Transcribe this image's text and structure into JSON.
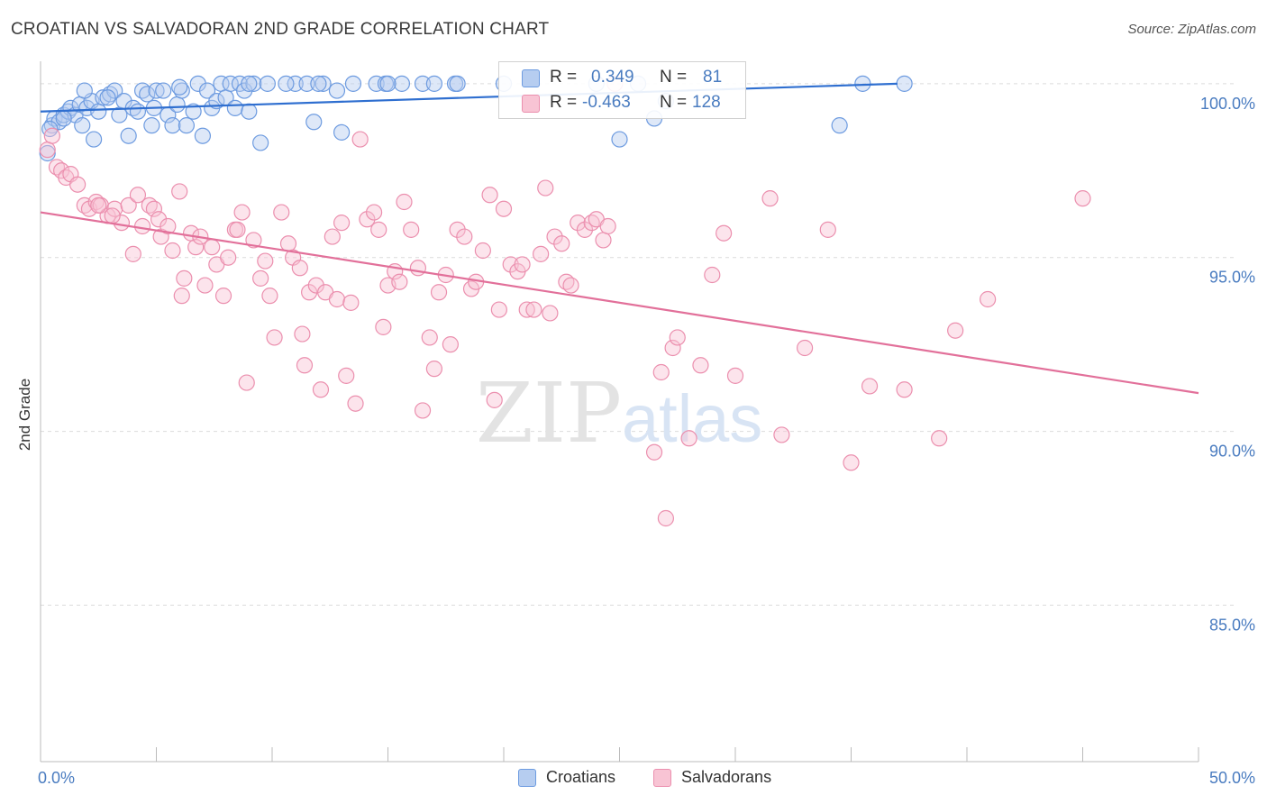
{
  "header": {
    "title": "CROATIAN VS SALVADORAN 2ND GRADE CORRELATION CHART",
    "source": "Source: ZipAtlas.com"
  },
  "legend": {
    "rows": [
      {
        "r_label": "R =",
        "r_value": "0.349",
        "n_label": "N =",
        "n_value": "81",
        "color": "#6d9be0"
      },
      {
        "r_label": "R =",
        "r_value": "-0.463",
        "n_label": "N =",
        "n_value": "128",
        "color": "#eb8fae"
      }
    ],
    "bottom": [
      {
        "label": "Croatians",
        "color": "#6d9be0"
      },
      {
        "label": "Salvadorans",
        "color": "#eb8fae"
      }
    ]
  },
  "watermark": {
    "part1": "ZIP",
    "part2": "atlas"
  },
  "chart_data": {
    "type": "scatter",
    "ylabel": "2nd Grade",
    "xlim": [
      0,
      50
    ],
    "ylim": [
      80.5,
      100.8
    ],
    "x_tick_labels": [
      {
        "value": 0,
        "label": "0.0%"
      },
      {
        "value": 50,
        "label": "50.0%"
      }
    ],
    "y_tick_labels": [
      {
        "value": 100,
        "label": "100.0%"
      },
      {
        "value": 95,
        "label": "95.0%"
      },
      {
        "value": 90,
        "label": "90.0%"
      },
      {
        "value": 85,
        "label": "85.0%"
      }
    ],
    "grid": "horizontal dashed",
    "series": [
      {
        "name": "Croatians",
        "color": "#6d9be0",
        "trend": {
          "x": [
            0,
            37
          ],
          "y": [
            99.2,
            100.0
          ]
        },
        "points": [
          [
            0.3,
            98.0
          ],
          [
            0.5,
            98.8
          ],
          [
            0.6,
            99.0
          ],
          [
            0.8,
            98.9
          ],
          [
            1.0,
            99.1
          ],
          [
            1.2,
            99.2
          ],
          [
            1.3,
            99.3
          ],
          [
            1.5,
            99.1
          ],
          [
            1.7,
            99.4
          ],
          [
            1.8,
            98.8
          ],
          [
            2.0,
            99.3
          ],
          [
            2.2,
            99.5
          ],
          [
            2.3,
            98.4
          ],
          [
            2.5,
            99.2
          ],
          [
            2.7,
            99.6
          ],
          [
            3.0,
            99.7
          ],
          [
            3.2,
            99.8
          ],
          [
            3.4,
            99.1
          ],
          [
            3.6,
            99.5
          ],
          [
            3.8,
            98.5
          ],
          [
            4.0,
            99.3
          ],
          [
            4.2,
            99.2
          ],
          [
            4.4,
            99.8
          ],
          [
            4.6,
            99.7
          ],
          [
            4.8,
            98.8
          ],
          [
            5.0,
            99.8
          ],
          [
            5.3,
            99.8
          ],
          [
            5.5,
            99.1
          ],
          [
            5.7,
            98.8
          ],
          [
            5.9,
            99.4
          ],
          [
            6.1,
            99.8
          ],
          [
            6.3,
            98.8
          ],
          [
            6.6,
            99.2
          ],
          [
            6.8,
            100.0
          ],
          [
            7.0,
            98.5
          ],
          [
            7.2,
            99.8
          ],
          [
            7.4,
            99.3
          ],
          [
            7.6,
            99.5
          ],
          [
            7.8,
            100.0
          ],
          [
            8.0,
            99.6
          ],
          [
            8.2,
            100.0
          ],
          [
            8.4,
            99.3
          ],
          [
            8.6,
            100.0
          ],
          [
            8.8,
            99.8
          ],
          [
            9.0,
            99.2
          ],
          [
            9.2,
            100.0
          ],
          [
            9.5,
            98.3
          ],
          [
            9.8,
            100.0
          ],
          [
            11.0,
            100.0
          ],
          [
            11.5,
            100.0
          ],
          [
            11.8,
            98.9
          ],
          [
            12.2,
            100.0
          ],
          [
            12.8,
            99.8
          ],
          [
            13.0,
            98.6
          ],
          [
            13.5,
            100.0
          ],
          [
            14.5,
            100.0
          ],
          [
            14.9,
            100.0
          ],
          [
            15.6,
            100.0
          ],
          [
            16.5,
            100.0
          ],
          [
            17.0,
            100.0
          ],
          [
            17.9,
            100.0
          ],
          [
            24.0,
            100.0
          ],
          [
            25.0,
            98.4
          ],
          [
            25.8,
            100.0
          ],
          [
            26.5,
            99.0
          ],
          [
            27.0,
            99.5
          ],
          [
            34.5,
            98.8
          ],
          [
            35.5,
            100.0
          ],
          [
            37.3,
            100.0
          ],
          [
            0.4,
            98.7
          ],
          [
            1.0,
            99.0
          ],
          [
            2.9,
            99.6
          ],
          [
            4.9,
            99.3
          ],
          [
            6.0,
            99.9
          ],
          [
            9.0,
            100.0
          ],
          [
            10.6,
            100.0
          ],
          [
            12.0,
            100.0
          ],
          [
            15.0,
            100.0
          ],
          [
            18.0,
            100.0
          ],
          [
            20.0,
            100.0
          ],
          [
            1.9,
            99.8
          ]
        ]
      },
      {
        "name": "Salvadorans",
        "color": "#eb8fae",
        "trend": {
          "x": [
            0,
            50
          ],
          "y": [
            96.3,
            91.1
          ]
        },
        "points": [
          [
            0.3,
            98.1
          ],
          [
            0.5,
            98.5
          ],
          [
            0.7,
            97.6
          ],
          [
            0.9,
            97.5
          ],
          [
            1.1,
            97.3
          ],
          [
            1.3,
            97.4
          ],
          [
            1.6,
            97.1
          ],
          [
            1.9,
            96.5
          ],
          [
            2.1,
            96.4
          ],
          [
            2.4,
            96.6
          ],
          [
            2.6,
            96.5
          ],
          [
            2.9,
            96.2
          ],
          [
            3.2,
            96.4
          ],
          [
            3.5,
            96.0
          ],
          [
            3.8,
            96.5
          ],
          [
            4.0,
            95.1
          ],
          [
            4.2,
            96.8
          ],
          [
            4.4,
            95.9
          ],
          [
            4.7,
            96.5
          ],
          [
            4.9,
            96.4
          ],
          [
            5.1,
            96.1
          ],
          [
            5.2,
            95.6
          ],
          [
            5.5,
            95.9
          ],
          [
            5.7,
            95.2
          ],
          [
            6.0,
            96.9
          ],
          [
            6.2,
            94.4
          ],
          [
            6.5,
            95.7
          ],
          [
            6.7,
            95.3
          ],
          [
            6.9,
            95.6
          ],
          [
            7.1,
            94.2
          ],
          [
            7.4,
            95.3
          ],
          [
            7.6,
            94.8
          ],
          [
            7.9,
            93.9
          ],
          [
            8.1,
            95.0
          ],
          [
            8.4,
            95.8
          ],
          [
            8.7,
            96.3
          ],
          [
            8.9,
            91.4
          ],
          [
            9.2,
            95.5
          ],
          [
            9.5,
            94.4
          ],
          [
            9.7,
            94.9
          ],
          [
            9.9,
            93.9
          ],
          [
            10.1,
            92.7
          ],
          [
            10.4,
            96.3
          ],
          [
            10.7,
            95.4
          ],
          [
            10.9,
            95.0
          ],
          [
            11.2,
            94.7
          ],
          [
            11.4,
            91.9
          ],
          [
            11.6,
            94.0
          ],
          [
            11.9,
            94.2
          ],
          [
            12.1,
            91.2
          ],
          [
            12.3,
            94.0
          ],
          [
            12.6,
            95.6
          ],
          [
            12.8,
            93.8
          ],
          [
            13.0,
            96.0
          ],
          [
            13.2,
            91.6
          ],
          [
            13.4,
            93.7
          ],
          [
            13.6,
            90.8
          ],
          [
            13.8,
            98.4
          ],
          [
            14.1,
            96.1
          ],
          [
            14.4,
            96.3
          ],
          [
            14.6,
            95.8
          ],
          [
            14.8,
            93.0
          ],
          [
            15.0,
            94.2
          ],
          [
            15.3,
            94.6
          ],
          [
            15.5,
            94.3
          ],
          [
            15.7,
            96.6
          ],
          [
            16.0,
            95.8
          ],
          [
            16.3,
            94.7
          ],
          [
            16.5,
            90.6
          ],
          [
            16.8,
            92.7
          ],
          [
            17.0,
            91.8
          ],
          [
            17.2,
            94.0
          ],
          [
            17.5,
            94.5
          ],
          [
            17.7,
            92.5
          ],
          [
            18.0,
            95.8
          ],
          [
            18.3,
            95.6
          ],
          [
            18.6,
            94.1
          ],
          [
            18.8,
            94.3
          ],
          [
            19.1,
            95.2
          ],
          [
            19.4,
            96.8
          ],
          [
            19.6,
            90.9
          ],
          [
            19.8,
            93.5
          ],
          [
            20.0,
            96.4
          ],
          [
            20.3,
            94.8
          ],
          [
            20.6,
            94.6
          ],
          [
            20.8,
            94.8
          ],
          [
            21.0,
            93.5
          ],
          [
            21.3,
            93.5
          ],
          [
            21.6,
            95.1
          ],
          [
            21.8,
            97.0
          ],
          [
            22.0,
            93.4
          ],
          [
            22.2,
            95.6
          ],
          [
            22.5,
            95.4
          ],
          [
            22.7,
            94.3
          ],
          [
            22.9,
            94.2
          ],
          [
            23.2,
            96.0
          ],
          [
            23.5,
            95.8
          ],
          [
            23.8,
            96.0
          ],
          [
            24.0,
            96.1
          ],
          [
            24.3,
            95.5
          ],
          [
            24.5,
            95.9
          ],
          [
            24.8,
            100.0
          ],
          [
            26.5,
            89.4
          ],
          [
            26.8,
            91.7
          ],
          [
            27.0,
            87.5
          ],
          [
            27.3,
            92.4
          ],
          [
            27.5,
            92.7
          ],
          [
            28.0,
            89.8
          ],
          [
            28.5,
            91.9
          ],
          [
            29.0,
            94.5
          ],
          [
            29.5,
            95.7
          ],
          [
            30.0,
            91.6
          ],
          [
            31.5,
            96.7
          ],
          [
            32.0,
            89.9
          ],
          [
            33.0,
            92.4
          ],
          [
            34.0,
            95.8
          ],
          [
            35.0,
            89.1
          ],
          [
            35.8,
            91.3
          ],
          [
            37.3,
            91.2
          ],
          [
            38.8,
            89.8
          ],
          [
            39.5,
            92.9
          ],
          [
            40.9,
            93.8
          ],
          [
            45.0,
            96.7
          ],
          [
            2.5,
            96.5
          ],
          [
            3.1,
            96.2
          ],
          [
            6.1,
            93.9
          ],
          [
            8.5,
            95.8
          ],
          [
            11.3,
            92.8
          ]
        ]
      }
    ]
  }
}
